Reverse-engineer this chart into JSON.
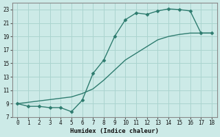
{
  "xlabel": "Humidex (Indice chaleur)",
  "bg_color": "#cceae7",
  "line_color": "#2d7b6e",
  "grid_color": "#aad4cf",
  "xlim": [
    -0.5,
    18.5
  ],
  "ylim": [
    7,
    24
  ],
  "xticks": [
    0,
    1,
    2,
    3,
    4,
    5,
    6,
    7,
    8,
    9,
    10,
    11,
    12,
    13,
    14,
    15,
    16,
    17,
    18
  ],
  "yticks": [
    7,
    9,
    11,
    13,
    15,
    17,
    19,
    21,
    23
  ],
  "curve1_x": [
    0,
    1,
    2,
    3,
    4,
    5,
    6,
    7,
    8,
    9,
    10,
    11,
    12,
    13,
    14,
    15,
    16,
    17,
    18
  ],
  "curve1_y": [
    9.0,
    8.6,
    8.6,
    8.4,
    8.4,
    7.8,
    9.5,
    13.5,
    15.5,
    19.0,
    21.5,
    22.5,
    22.3,
    22.8,
    23.1,
    23.0,
    22.8,
    19.5,
    19.5
  ],
  "curve2_x": [
    0,
    1,
    2,
    3,
    4,
    5,
    6,
    7,
    8,
    9,
    10,
    11,
    12,
    13,
    14,
    15,
    16,
    17,
    18
  ],
  "curve2_y": [
    9.0,
    9.2,
    9.4,
    9.6,
    9.8,
    10.0,
    10.5,
    11.2,
    12.5,
    14.0,
    15.5,
    16.5,
    17.5,
    18.5,
    19.0,
    19.3,
    19.5,
    19.5,
    19.5
  ],
  "marker": "D",
  "markersize": 2.5,
  "linewidth": 1.0
}
